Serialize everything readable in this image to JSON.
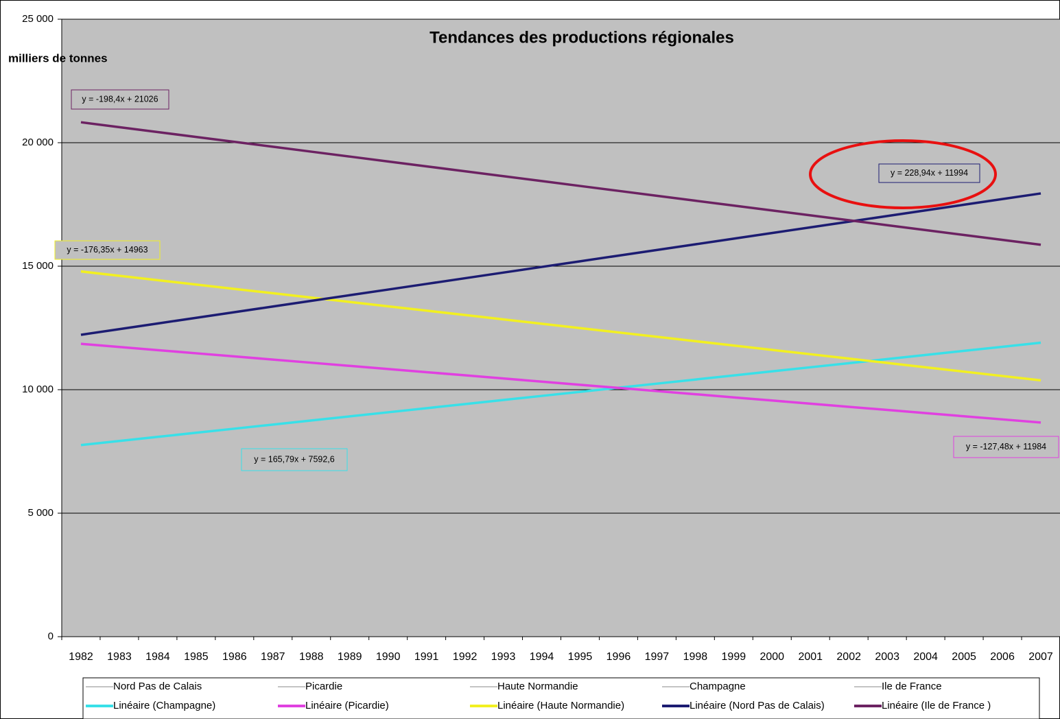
{
  "chart_data": {
    "type": "line",
    "title": "Tendances des productions régionales",
    "y_label": "milliers de tonnes",
    "categories": [
      "1982",
      "1983",
      "1984",
      "1985",
      "1986",
      "1987",
      "1988",
      "1989",
      "1990",
      "1991",
      "1992",
      "1993",
      "1994",
      "1995",
      "1996",
      "1997",
      "1998",
      "1999",
      "2000",
      "2001",
      "2002",
      "2003",
      "2004",
      "2005",
      "2006",
      "2007"
    ],
    "ylim": [
      0,
      25000
    ],
    "yticks": [
      0,
      {
        "value": 5000,
        "label": "5 000"
      },
      {
        "value": 10000,
        "label": "10 000"
      },
      {
        "value": 15000,
        "label": "15 000"
      },
      {
        "value": 20000,
        "label": "20 000"
      },
      {
        "value": 25000,
        "label": "25 000"
      }
    ],
    "grid": true,
    "legend_only": [
      "Nord Pas de Calais",
      "Picardie",
      "Haute Normandie",
      "Champagne",
      "Ile de France"
    ],
    "series": [
      {
        "name": "Linéaire (Champagne)",
        "color": "#38e0e8",
        "equation": "y = 165,79x + 7592,6",
        "values": [
          7758,
          7924,
          8090,
          8256,
          8422,
          8587,
          8753,
          8919,
          9085,
          9251,
          9416,
          9582,
          9748,
          9914,
          10079,
          10245,
          10411,
          10577,
          10743,
          10908,
          11074,
          11240,
          11406,
          11572,
          11737,
          11903
        ]
      },
      {
        "name": "Linéaire (Picardie)",
        "color": "#e040e0",
        "equation": "y = -127,48x + 11984",
        "values": [
          11857,
          11729,
          11602,
          11474,
          11347,
          11219,
          11092,
          10964,
          10837,
          10709,
          10582,
          10454,
          10327,
          10199,
          10072,
          9944,
          9817,
          9689,
          9562,
          9434,
          9307,
          9179,
          9052,
          8924,
          8797,
          8670
        ]
      },
      {
        "name": "Linéaire (Haute Normandie)",
        "color": "#f2f020",
        "equation": "y = -176,35x + 14963",
        "values": [
          14787,
          14610,
          14434,
          14258,
          14081,
          13905,
          13729,
          13552,
          13376,
          13200,
          13023,
          12847,
          12670,
          12494,
          12318,
          12141,
          11965,
          11789,
          11612,
          11436,
          11260,
          11083,
          10907,
          10731,
          10554,
          10378
        ]
      },
      {
        "name": "Linéaire (Nord Pas de Calais)",
        "color": "#1c1c72",
        "equation": "y = 228,94x + 11994",
        "values": [
          12223,
          12452,
          12681,
          12910,
          13139,
          13368,
          13597,
          13826,
          14054,
          14283,
          14512,
          14741,
          14970,
          15199,
          15428,
          15657,
          15886,
          16115,
          16344,
          16573,
          16802,
          17031,
          17260,
          17489,
          17718,
          17946
        ]
      },
      {
        "name": "Linéaire (Ile de France )",
        "color": "#6c2262",
        "equation": "y = -198,4x + 21026",
        "values": [
          20828,
          20629,
          20431,
          20232,
          20034,
          19836,
          19637,
          19439,
          19240,
          19042,
          18844,
          18645,
          18447,
          18248,
          18050,
          17852,
          17653,
          17455,
          17256,
          17058,
          16860,
          16661,
          16463,
          16264,
          16066,
          15868
        ]
      }
    ]
  }
}
